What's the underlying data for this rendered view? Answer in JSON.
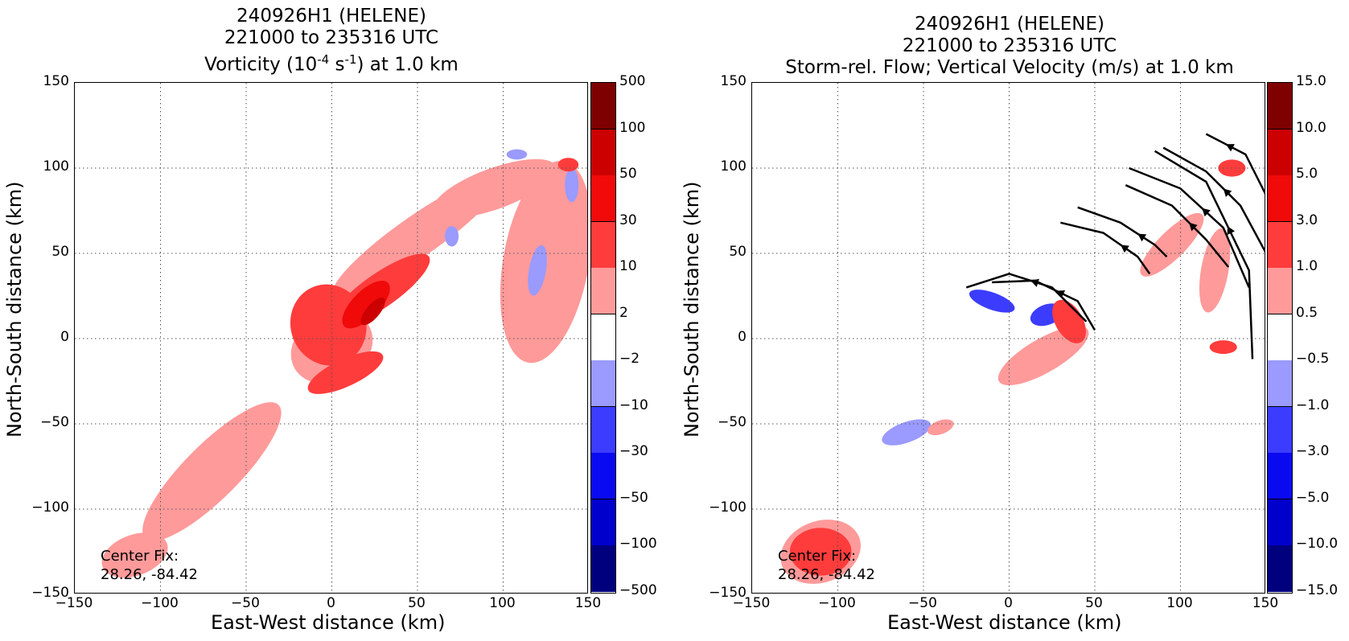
{
  "panels": [
    {
      "title1": "240926H1 (HELENE)",
      "title2": "221000 to 235316 UTC",
      "title3_pre": "Vorticity (10",
      "title3_sup1": "-4",
      "title3_mid": " s",
      "title3_sup2": "-1",
      "title3_post": ") at 1.0 km",
      "xlabel": "East-West distance (km)",
      "ylabel": "North-South distance (km)",
      "center_fix_label": "Center Fix:",
      "center_fix_value": "28.26, -84.42",
      "colorbar_labels": [
        "500",
        "100",
        "50",
        "30",
        "10",
        "2",
        "−2",
        "−10",
        "−30",
        "−50",
        "−100",
        "−500"
      ]
    },
    {
      "title1": "240926H1 (HELENE)",
      "title2": "221000 to 235316 UTC",
      "title3": "Storm-rel. Flow; Vertical Velocity (m/s) at 1.0 km",
      "xlabel": "East-West distance (km)",
      "ylabel": "North-South distance (km)",
      "center_fix_label": "Center Fix:",
      "center_fix_value": "28.26, -84.42",
      "colorbar_labels": [
        "15.0",
        "10.0",
        "5.0",
        "3.0",
        "1.0",
        "0.5",
        "−0.5",
        "−1.0",
        "−3.0",
        "−5.0",
        "−10.0",
        "−15.0"
      ]
    }
  ],
  "chart_data": [
    {
      "type": "heatmap",
      "title": "240926H1 (HELENE) 221000 to 235316 UTC Vorticity (10^-4 s^-1) at 1.0 km",
      "xlabel": "East-West distance (km)",
      "ylabel": "North-South distance (km)",
      "xlim": [
        -150,
        150
      ],
      "ylim": [
        -150,
        150
      ],
      "xticks": [
        "−150",
        "−100",
        "−50",
        "0",
        "50",
        "100",
        "150"
      ],
      "yticks": [
        "150",
        "100",
        "50",
        "0",
        "−50",
        "−100",
        "−150"
      ],
      "grid": true,
      "colorbar_levels": [
        -500,
        -100,
        -50,
        -30,
        -10,
        -2,
        2,
        10,
        30,
        50,
        100,
        500
      ],
      "colors": [
        "#00007f",
        "#0000a8",
        "#0000cc",
        "#0a0af0",
        "#3c3cff",
        "#9a9aff",
        "#ffffff",
        "#ff9a9a",
        "#ff3c3c",
        "#f00a0a",
        "#cc0000",
        "#7f0000"
      ],
      "features": [
        {
          "level": 2,
          "x": 0,
          "y": -5,
          "rx": 25,
          "ry": 20,
          "rot": -30
        },
        {
          "level": 2,
          "x": 50,
          "y": 60,
          "rx": 60,
          "ry": 12,
          "rot": -35
        },
        {
          "level": 2,
          "x": 125,
          "y": 45,
          "rx": 25,
          "ry": 60,
          "rot": 10
        },
        {
          "level": 2,
          "x": 95,
          "y": 88,
          "rx": 38,
          "ry": 12,
          "rot": -20
        },
        {
          "level": 2,
          "x": -70,
          "y": -78,
          "rx": 55,
          "ry": 16,
          "rot": -45
        },
        {
          "level": 2,
          "x": -115,
          "y": -127,
          "rx": 20,
          "ry": 12,
          "rot": -20
        },
        {
          "level": 10,
          "x": -2,
          "y": 8,
          "rx": 22,
          "ry": 24,
          "rot": -20
        },
        {
          "level": 10,
          "x": 28,
          "y": 28,
          "rx": 35,
          "ry": 10,
          "rot": -35
        },
        {
          "level": 10,
          "x": 8,
          "y": -20,
          "rx": 24,
          "ry": 8,
          "rot": -25
        },
        {
          "level": 30,
          "x": 20,
          "y": 20,
          "rx": 18,
          "ry": 8,
          "rot": -45
        },
        {
          "level": 50,
          "x": 24,
          "y": 16,
          "rx": 10,
          "ry": 4,
          "rot": -50
        },
        {
          "level": 10,
          "x": 138,
          "y": 102,
          "rx": 6,
          "ry": 4,
          "rot": 0
        },
        {
          "level": -2,
          "x": 120,
          "y": 40,
          "rx": 5,
          "ry": 15,
          "rot": 10
        },
        {
          "level": -2,
          "x": 140,
          "y": 90,
          "rx": 4,
          "ry": 10,
          "rot": 0
        },
        {
          "level": -2,
          "x": 108,
          "y": 108,
          "rx": 6,
          "ry": 3,
          "rot": 0
        },
        {
          "level": -2,
          "x": 70,
          "y": 60,
          "rx": 4,
          "ry": 6,
          "rot": 0
        }
      ]
    },
    {
      "type": "heatmap",
      "title": "240926H1 (HELENE) 221000 to 235316 UTC Storm-rel. Flow; Vertical Velocity (m/s) at 1.0 km",
      "xlabel": "East-West distance (km)",
      "ylabel": "North-South distance (km)",
      "xlim": [
        -150,
        150
      ],
      "ylim": [
        -150,
        150
      ],
      "xticks": [
        "−150",
        "−100",
        "−50",
        "0",
        "50",
        "100",
        "150"
      ],
      "yticks": [
        "150",
        "100",
        "50",
        "0",
        "−50",
        "−100",
        "−150"
      ],
      "grid": true,
      "colorbar_levels": [
        -15.0,
        -10.0,
        -5.0,
        -3.0,
        -1.0,
        -0.5,
        0.5,
        1.0,
        3.0,
        5.0,
        10.0,
        15.0
      ],
      "colors": [
        "#00007f",
        "#0000a8",
        "#0000cc",
        "#0a0af0",
        "#3c3cff",
        "#9a9aff",
        "#ffffff",
        "#ff9a9a",
        "#ff3c3c",
        "#f00a0a",
        "#cc0000",
        "#7f0000"
      ],
      "features": [
        {
          "level": 1.0,
          "x": -110,
          "y": -125,
          "rx": 18,
          "ry": 14,
          "rot": 0
        },
        {
          "level": 0.5,
          "x": -110,
          "y": -125,
          "rx": 24,
          "ry": 18,
          "rot": -20
        },
        {
          "level": -1.0,
          "x": 22,
          "y": 14,
          "rx": 10,
          "ry": 6,
          "rot": -20
        },
        {
          "level": -1.0,
          "x": -10,
          "y": 22,
          "rx": 14,
          "ry": 5,
          "rot": 20
        },
        {
          "level": 1.0,
          "x": 35,
          "y": 10,
          "rx": 8,
          "ry": 14,
          "rot": -30
        },
        {
          "level": 0.5,
          "x": 20,
          "y": -10,
          "rx": 30,
          "ry": 10,
          "rot": -30
        },
        {
          "level": -0.5,
          "x": -60,
          "y": -55,
          "rx": 15,
          "ry": 6,
          "rot": -20
        },
        {
          "level": 0.5,
          "x": -40,
          "y": -52,
          "rx": 8,
          "ry": 4,
          "rot": -20
        },
        {
          "level": 1.0,
          "x": 130,
          "y": 100,
          "rx": 8,
          "ry": 5,
          "rot": 0
        },
        {
          "level": 1.0,
          "x": 125,
          "y": -5,
          "rx": 8,
          "ry": 4,
          "rot": 0
        },
        {
          "level": 0.5,
          "x": 95,
          "y": 55,
          "rx": 25,
          "ry": 8,
          "rot": -45
        },
        {
          "level": 0.5,
          "x": 120,
          "y": 40,
          "rx": 8,
          "ry": 25,
          "rot": 10
        }
      ],
      "streamlines": [
        {
          "x": [
            -25,
            0,
            25,
            45
          ],
          "y": [
            30,
            38,
            30,
            10
          ]
        },
        {
          "x": [
            -10,
            15,
            40,
            50
          ],
          "y": [
            33,
            34,
            22,
            5
          ]
        },
        {
          "x": [
            30,
            55,
            75,
            82
          ],
          "y": [
            68,
            62,
            48,
            38
          ]
        },
        {
          "x": [
            40,
            65,
            85,
            92
          ],
          "y": [
            77,
            68,
            55,
            48
          ]
        },
        {
          "x": [
            68,
            95,
            115,
            128
          ],
          "y": [
            90,
            78,
            58,
            42
          ]
        },
        {
          "x": [
            70,
            100,
            125,
            140
          ],
          "y": [
            100,
            88,
            65,
            30
          ]
        },
        {
          "x": [
            90,
            115,
            135,
            150
          ],
          "y": [
            112,
            98,
            78,
            50
          ]
        },
        {
          "x": [
            85,
            115,
            140,
            142
          ],
          "y": [
            110,
            92,
            40,
            -12
          ]
        },
        {
          "x": [
            115,
            138,
            152
          ],
          "y": [
            120,
            108,
            80
          ]
        }
      ]
    }
  ]
}
